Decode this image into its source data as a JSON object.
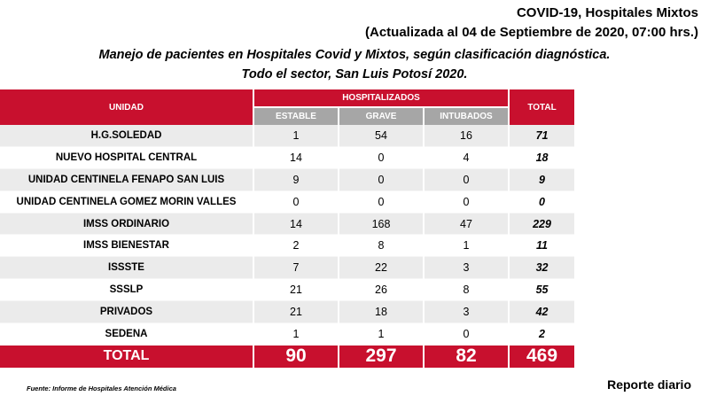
{
  "header": {
    "title": "COVID-19, Hospitales Mixtos",
    "updated": "(Actualizada al 04 de Septiembre de 2020, 07:00 hrs.)",
    "subtitle1": "Manejo de pacientes en Hospitales Covid y Mixtos, según clasificación diagnóstica.",
    "subtitle2": "Todo el sector, San Luis Potosí 2020."
  },
  "table": {
    "col_unidad": "UNIDAD",
    "col_hosp": "HOSPITALIZADOS",
    "col_estable": "ESTABLE",
    "col_grave": "GRAVE",
    "col_intubados": "INTUBADOS",
    "col_total": "TOTAL",
    "rows": [
      {
        "unidad": "H.G.SOLEDAD",
        "estable": "1",
        "grave": "54",
        "intubados": "16",
        "total": "71"
      },
      {
        "unidad": "NUEVO HOSPITAL CENTRAL",
        "estable": "14",
        "grave": "0",
        "intubados": "4",
        "total": "18"
      },
      {
        "unidad": "UNIDAD CENTINELA FENAPO SAN LUIS",
        "estable": "9",
        "grave": "0",
        "intubados": "0",
        "total": "9"
      },
      {
        "unidad": "UNIDAD CENTINELA GOMEZ MORIN VALLES",
        "estable": "0",
        "grave": "0",
        "intubados": "0",
        "total": "0"
      },
      {
        "unidad": "IMSS ORDINARIO",
        "estable": "14",
        "grave": "168",
        "intubados": "47",
        "total": "229"
      },
      {
        "unidad": "IMSS BIENESTAR",
        "estable": "2",
        "grave": "8",
        "intubados": "1",
        "total": "11"
      },
      {
        "unidad": "ISSSTE",
        "estable": "7",
        "grave": "22",
        "intubados": "3",
        "total": "32"
      },
      {
        "unidad": "SSSLP",
        "estable": "21",
        "grave": "26",
        "intubados": "8",
        "total": "55"
      },
      {
        "unidad": "PRIVADOS",
        "estable": "21",
        "grave": "18",
        "intubados": "3",
        "total": "42"
      },
      {
        "unidad": "SEDENA",
        "estable": "1",
        "grave": "1",
        "intubados": "0",
        "total": "2"
      }
    ],
    "totals": {
      "label": "TOTAL",
      "estable": "90",
      "grave": "297",
      "intubados": "82",
      "total": "469"
    }
  },
  "footer": {
    "source": "Fuente: Informe de Hospitales  Atención  Médica",
    "report": "Reporte diario"
  },
  "colors": {
    "accent": "#c8102e",
    "subheader": "#a6a6a6",
    "stripe": "#ebebeb"
  }
}
